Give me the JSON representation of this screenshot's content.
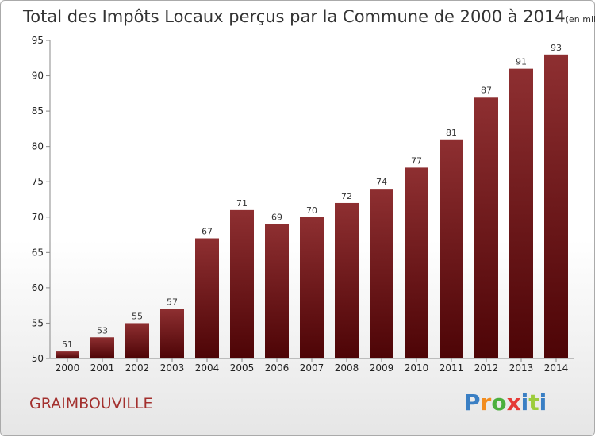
{
  "chart_data": {
    "type": "bar",
    "title": "Total des Impôts Locaux perçus par la Commune de 2000 à 2014",
    "unit": "(en milliers d'€)",
    "categories": [
      "2000",
      "2001",
      "2002",
      "2003",
      "2004",
      "2005",
      "2006",
      "2007",
      "2008",
      "2009",
      "2010",
      "2011",
      "2012",
      "2013",
      "2014"
    ],
    "values": [
      51,
      53,
      55,
      57,
      67,
      71,
      69,
      70,
      72,
      74,
      77,
      81,
      87,
      91,
      93
    ],
    "ylim": [
      50,
      95
    ],
    "yticks": [
      50,
      55,
      60,
      65,
      70,
      75,
      80,
      85,
      90,
      95
    ],
    "grid": false,
    "bar_color": "#7a1c1f"
  },
  "commune": "GRAIMBOUVILLE",
  "brand": {
    "letters": [
      "P",
      "r",
      "o",
      "x",
      "i",
      "t",
      "i"
    ],
    "colors": [
      "#3a7fc4",
      "#f28c1e",
      "#4caf3d",
      "#e53935",
      "#3a7fc4",
      "#9ccc3c",
      "#3a7fc4"
    ]
  }
}
